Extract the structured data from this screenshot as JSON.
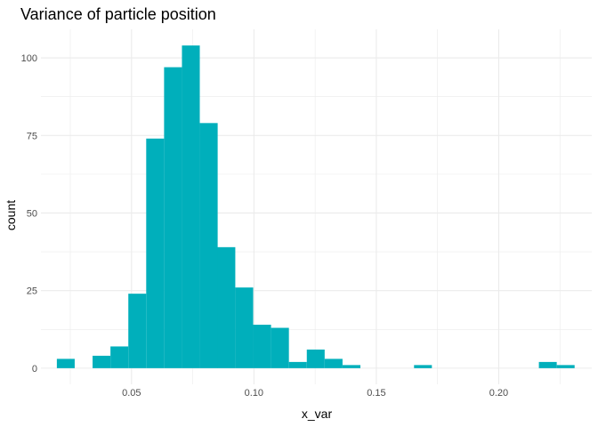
{
  "chart_data": {
    "type": "bar",
    "subtype": "histogram",
    "title": "Variance of particle position",
    "xlabel": "x_var",
    "ylabel": "count",
    "xlim": [
      0.013,
      0.238
    ],
    "ylim": [
      -5.2,
      109.2
    ],
    "x_ticks": [
      0.05,
      0.1,
      0.15,
      0.2
    ],
    "x_tick_labels": [
      "0.05",
      "0.10",
      "0.15",
      "0.20"
    ],
    "y_ticks": [
      0,
      25,
      50,
      75,
      100
    ],
    "y_tick_labels": [
      "0",
      "25",
      "50",
      "75",
      "100"
    ],
    "bin_width": 0.00729,
    "bins": [
      {
        "start": 0.0195,
        "count": 3
      },
      {
        "start": 0.0268,
        "count": 0
      },
      {
        "start": 0.0341,
        "count": 4
      },
      {
        "start": 0.0414,
        "count": 7
      },
      {
        "start": 0.0487,
        "count": 24
      },
      {
        "start": 0.056,
        "count": 74
      },
      {
        "start": 0.0633,
        "count": 97
      },
      {
        "start": 0.0706,
        "count": 104
      },
      {
        "start": 0.0779,
        "count": 79
      },
      {
        "start": 0.0851,
        "count": 39
      },
      {
        "start": 0.0924,
        "count": 26
      },
      {
        "start": 0.0997,
        "count": 14
      },
      {
        "start": 0.107,
        "count": 13
      },
      {
        "start": 0.1143,
        "count": 2
      },
      {
        "start": 0.1216,
        "count": 6
      },
      {
        "start": 0.1289,
        "count": 3
      },
      {
        "start": 0.1362,
        "count": 1
      },
      {
        "start": 0.1435,
        "count": 0
      },
      {
        "start": 0.1508,
        "count": 0
      },
      {
        "start": 0.1581,
        "count": 0
      },
      {
        "start": 0.1654,
        "count": 1
      },
      {
        "start": 0.1727,
        "count": 0
      },
      {
        "start": 0.18,
        "count": 0
      },
      {
        "start": 0.1873,
        "count": 0
      },
      {
        "start": 0.1945,
        "count": 0
      },
      {
        "start": 0.2018,
        "count": 0
      },
      {
        "start": 0.2091,
        "count": 0
      },
      {
        "start": 0.2164,
        "count": 2
      },
      {
        "start": 0.2237,
        "count": 1
      }
    ],
    "bar_color": "#00AFBB",
    "grid": true,
    "grid_color": "#EBEBEB",
    "legend": "none"
  }
}
